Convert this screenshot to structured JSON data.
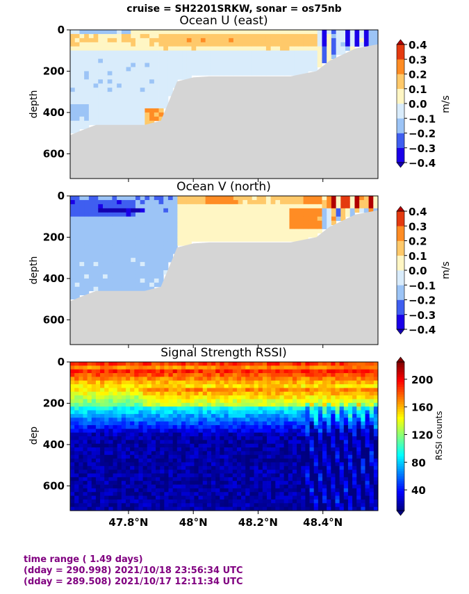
{
  "suptitle": "cruise = SH2201SRKW,  sonar = os75nb",
  "footer": {
    "line1": "time range ( 1.49 days)",
    "line2": "(dday = 290.998) 2021/10/18 23:56:34 UTC",
    "line3": "(dday = 289.508) 2021/10/17 12:11:34 UTC"
  },
  "colors": {
    "mask": "#d5d5d5",
    "footer_text": "#800080",
    "diverging_levels": [
      "#1a00e8",
      "#3f5ef0",
      "#9cc4f6",
      "#d9ecfb",
      "#fff6c4",
      "#ffc96a",
      "#ff8c24",
      "#e43a10"
    ],
    "diverging_extend": [
      "#1400b0",
      "#b00000"
    ],
    "jet": [
      "#00007f",
      "#0000ff",
      "#007fff",
      "#00ffff",
      "#7fff7f",
      "#ffff00",
      "#ff7f00",
      "#ff0000",
      "#7f0000"
    ]
  },
  "chart_data": [
    {
      "type": "heatmap",
      "title": "Ocean U (east)",
      "xlabel": "",
      "ylabel": "depth",
      "xlim": [
        47.62,
        48.57
      ],
      "ylim": [
        720,
        0
      ],
      "yticks": [
        0,
        200,
        400,
        600
      ],
      "ytick_labels": [
        "0",
        "200",
        "400",
        "600"
      ],
      "colorbar": {
        "label": "m/s",
        "levels": [
          -0.4,
          -0.3,
          -0.2,
          -0.1,
          0.0,
          0.1,
          0.2,
          0.3,
          0.4
        ],
        "tick_labels": [
          "0.4",
          "0.3",
          "0.2",
          "0.1",
          "0.0",
          "−0.1",
          "−0.2",
          "−0.3",
          "−0.4"
        ],
        "extend": "both"
      },
      "bottom_profile": {
        "lat": [
          47.62,
          47.65,
          47.7,
          47.75,
          47.8,
          47.85,
          47.9,
          47.95,
          48.0,
          48.05,
          48.1,
          48.2,
          48.3,
          48.38,
          48.42,
          48.46,
          48.5,
          48.57
        ],
        "depth": [
          510,
          490,
          460,
          460,
          460,
          460,
          440,
          250,
          230,
          225,
          225,
          225,
          225,
          200,
          150,
          120,
          90,
          70
        ]
      }
    },
    {
      "type": "heatmap",
      "title": "Ocean V (north)",
      "xlabel": "",
      "ylabel": "depth",
      "xlim": [
        47.62,
        48.57
      ],
      "ylim": [
        720,
        0
      ],
      "yticks": [
        0,
        200,
        400,
        600
      ],
      "ytick_labels": [
        "0",
        "200",
        "400",
        "600"
      ],
      "colorbar": {
        "label": "m/s",
        "levels": [
          -0.4,
          -0.3,
          -0.2,
          -0.1,
          0.0,
          0.1,
          0.2,
          0.3,
          0.4
        ],
        "tick_labels": [
          "0.4",
          "0.3",
          "0.2",
          "0.1",
          "0.0",
          "−0.1",
          "−0.2",
          "−0.3",
          "−0.4"
        ],
        "extend": "both"
      },
      "bottom_profile": {
        "lat": [
          47.62,
          47.65,
          47.7,
          47.75,
          47.8,
          47.85,
          47.9,
          47.95,
          48.0,
          48.05,
          48.1,
          48.2,
          48.3,
          48.38,
          48.42,
          48.46,
          48.5,
          48.57
        ],
        "depth": [
          510,
          490,
          460,
          460,
          460,
          460,
          440,
          250,
          230,
          225,
          225,
          225,
          225,
          200,
          150,
          120,
          90,
          70
        ]
      }
    },
    {
      "type": "heatmap",
      "title": "Signal Strength RSSI)",
      "xlabel": "",
      "ylabel": "dep",
      "xlim": [
        47.62,
        48.57
      ],
      "ylim": [
        720,
        0
      ],
      "yticks": [
        0,
        200,
        400,
        600
      ],
      "ytick_labels": [
        "0",
        "200",
        "400",
        "600"
      ],
      "xticks": [
        47.8,
        48.0,
        48.2,
        48.4
      ],
      "xtick_labels": [
        "47.8°N",
        "48°N",
        "48.2°N",
        "48.4°N"
      ],
      "colorbar": {
        "label": "RSSI counts",
        "range": [
          10,
          225
        ],
        "ticks": [
          40,
          80,
          120,
          160,
          200
        ],
        "tick_labels": [
          "40",
          "80",
          "120",
          "160",
          "200"
        ],
        "extend": "both"
      }
    }
  ]
}
